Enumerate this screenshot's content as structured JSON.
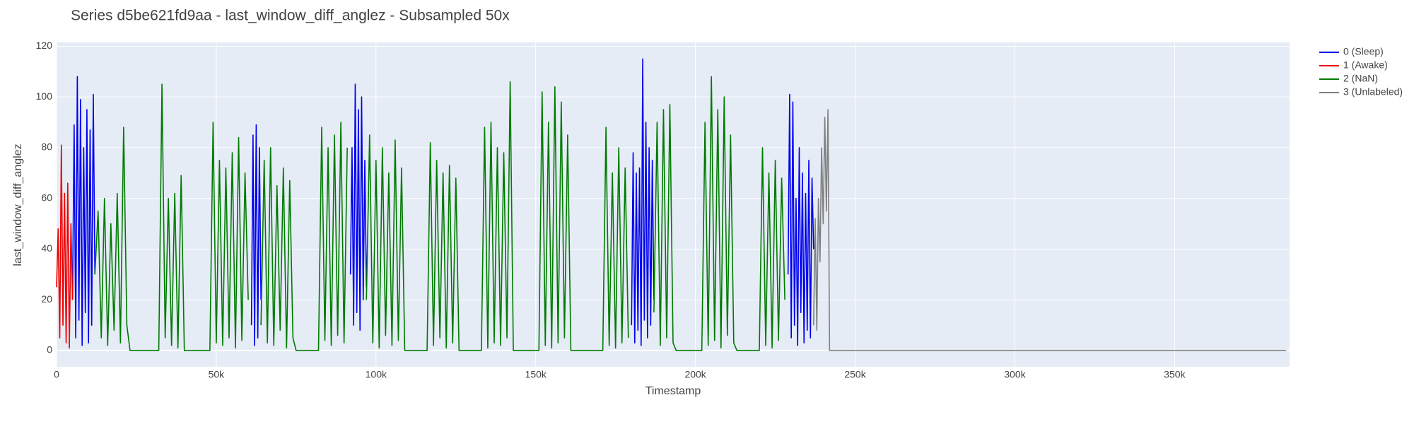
{
  "chart_data": {
    "type": "line",
    "title": "Series d5be621fd9aa - last_window_diff_anglez - Subsampled 50x",
    "x_label": "Timestamp",
    "y_label": "last_window_diff_anglez",
    "xlim": [
      0,
      386000
    ],
    "ylim": [
      -6.4,
      121.5
    ],
    "xticks": [
      {
        "value": 0,
        "label": "0"
      },
      {
        "value": 50000,
        "label": "50k"
      },
      {
        "value": 100000,
        "label": "100k"
      },
      {
        "value": 150000,
        "label": "150k"
      },
      {
        "value": 200000,
        "label": "200k"
      },
      {
        "value": 250000,
        "label": "250k"
      },
      {
        "value": 300000,
        "label": "300k"
      },
      {
        "value": 350000,
        "label": "350k"
      }
    ],
    "yticks": [
      0,
      20,
      40,
      60,
      80,
      100,
      120
    ],
    "grid": true,
    "legend": "right-top",
    "series": [
      {
        "name": "0 (Sleep)",
        "color": "#0000ee",
        "x": [
          5000,
          5500,
          6000,
          6500,
          7000,
          7500,
          8000,
          8500,
          9000,
          9500,
          10000,
          10500,
          11000,
          11500,
          12000,
          12500,
          61000,
          61500,
          62000,
          62500,
          63000,
          63500,
          64000,
          64500,
          92000,
          92500,
          93000,
          93500,
          94000,
          94500,
          95000,
          95500,
          96000,
          96500,
          97000,
          97500,
          180000,
          180500,
          181000,
          181500,
          182000,
          182500,
          183000,
          183500,
          184000,
          184500,
          185000,
          185500,
          186000,
          186500,
          187000,
          187500,
          229000,
          229500,
          230000,
          230500,
          231000,
          231500,
          232000,
          232500,
          233000,
          233500,
          234000,
          234500,
          235000,
          235500,
          236000,
          236500,
          237000
        ],
        "values": [
          20,
          89,
          5,
          108,
          12,
          99,
          2,
          80,
          15,
          95,
          3,
          87,
          10,
          101,
          30,
          null,
          10,
          85,
          2,
          89,
          5,
          80,
          20,
          null,
          30,
          80,
          10,
          105,
          15,
          95,
          8,
          100,
          20,
          75,
          25,
          null,
          10,
          78,
          3,
          70,
          8,
          72,
          2,
          115,
          12,
          90,
          5,
          80,
          10,
          75,
          20,
          null,
          30,
          101,
          5,
          98,
          10,
          60,
          2,
          80,
          15,
          70,
          3,
          62,
          8,
          75,
          5,
          68,
          40
        ]
      },
      {
        "name": "1 (Awake)",
        "color": "#ee0000",
        "x": [
          0,
          500,
          1000,
          1500,
          2000,
          2500,
          3000,
          3500,
          4000,
          4500,
          5000
        ],
        "values": [
          25,
          48,
          5,
          81,
          10,
          62,
          3,
          66,
          1,
          50,
          20
        ]
      },
      {
        "name": "2 (NaN)",
        "color": "#007a00",
        "x": [
          12000,
          13000,
          14000,
          15000,
          16000,
          17000,
          18000,
          19000,
          20000,
          21000,
          22000,
          23000,
          32000,
          33000,
          34000,
          35000,
          36000,
          37000,
          38000,
          39000,
          40000,
          48000,
          49000,
          50000,
          51000,
          52000,
          53000,
          54000,
          55000,
          56000,
          57000,
          58000,
          59000,
          60000,
          61000,
          64000,
          65000,
          66000,
          67000,
          68000,
          69000,
          70000,
          71000,
          72000,
          73000,
          74000,
          75000,
          82000,
          83000,
          84000,
          85000,
          86000,
          87000,
          88000,
          89000,
          90000,
          91000,
          92000,
          97000,
          98000,
          99000,
          100000,
          101000,
          102000,
          103000,
          104000,
          105000,
          106000,
          107000,
          108000,
          109000,
          116000,
          117000,
          118000,
          119000,
          120000,
          121000,
          122000,
          123000,
          124000,
          125000,
          126000,
          133000,
          134000,
          135000,
          136000,
          137000,
          138000,
          139000,
          140000,
          141000,
          142000,
          143000,
          151000,
          152000,
          153000,
          154000,
          155000,
          156000,
          157000,
          158000,
          159000,
          160000,
          161000,
          171000,
          172000,
          173000,
          174000,
          175000,
          176000,
          177000,
          178000,
          179000,
          180000,
          187000,
          188000,
          189000,
          190000,
          191000,
          192000,
          193000,
          194000,
          202000,
          203000,
          204000,
          205000,
          206000,
          207000,
          208000,
          209000,
          210000,
          211000,
          212000,
          213000,
          220000,
          221000,
          222000,
          223000,
          224000,
          225000,
          226000,
          227000,
          228000,
          229000
        ],
        "values": [
          30,
          55,
          5,
          60,
          2,
          50,
          8,
          62,
          3,
          88,
          10,
          0,
          0,
          105,
          5,
          60,
          2,
          62,
          1,
          69,
          0,
          0,
          90,
          3,
          75,
          2,
          72,
          5,
          78,
          1,
          84,
          4,
          70,
          20,
          null,
          10,
          75,
          3,
          80,
          2,
          65,
          8,
          72,
          1,
          67,
          5,
          0,
          0,
          88,
          4,
          80,
          2,
          85,
          6,
          90,
          3,
          80,
          null,
          20,
          85,
          3,
          75,
          1,
          80,
          6,
          70,
          2,
          83,
          4,
          72,
          0,
          0,
          82,
          2,
          75,
          5,
          70,
          1,
          73,
          3,
          68,
          0,
          0,
          88,
          1,
          90,
          3,
          80,
          2,
          78,
          5,
          106,
          0,
          0,
          102,
          2,
          90,
          1,
          104,
          3,
          98,
          5,
          85,
          0,
          0,
          88,
          2,
          70,
          1,
          80,
          3,
          72,
          5,
          null,
          15,
          90,
          2,
          95,
          5,
          97,
          3,
          0,
          0,
          90,
          2,
          108,
          4,
          95,
          1,
          100,
          6,
          85,
          3,
          0,
          0,
          80,
          2,
          70,
          1,
          75,
          4,
          68,
          20,
          null
        ]
      },
      {
        "name": "3 (Unlabeled)",
        "color": "#808080",
        "x": [
          237000,
          237500,
          238000,
          238500,
          239000,
          239500,
          240000,
          240500,
          241000,
          241500,
          242000,
          385000
        ],
        "values": [
          10,
          52,
          8,
          60,
          35,
          80,
          50,
          92,
          55,
          95,
          0,
          0
        ]
      }
    ]
  }
}
